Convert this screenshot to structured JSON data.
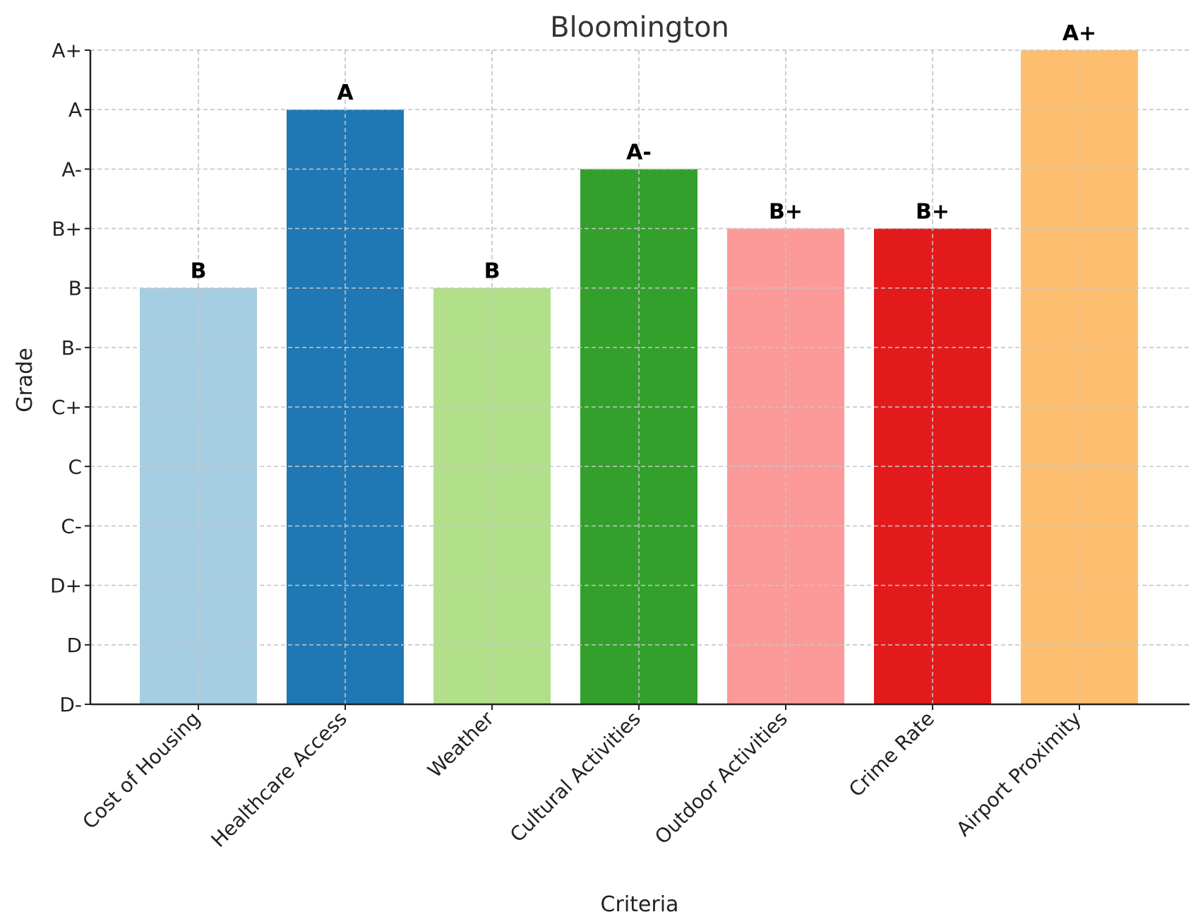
{
  "chart_data": {
    "type": "bar",
    "title": "Bloomington",
    "xlabel": "Criteria",
    "ylabel": "Grade",
    "grade_scale": [
      "D-",
      "D",
      "D+",
      "C-",
      "C",
      "C+",
      "B-",
      "B",
      "B+",
      "A-",
      "A",
      "A+"
    ],
    "categories": [
      "Cost of Housing",
      "Healthcare Access",
      "Weather",
      "Cultural Activities",
      "Outdoor Activities",
      "Crime Rate",
      "Airport Proximity"
    ],
    "values": [
      "B",
      "A",
      "B",
      "A-",
      "B+",
      "B+",
      "A+"
    ],
    "colors": [
      "#a6cee3",
      "#1f78b4",
      "#b2df8a",
      "#33a02c",
      "#fb9a99",
      "#e31a1c",
      "#fdbf6f"
    ],
    "ylim": [
      "D-",
      "A+"
    ],
    "grid": true,
    "legend": "none"
  }
}
